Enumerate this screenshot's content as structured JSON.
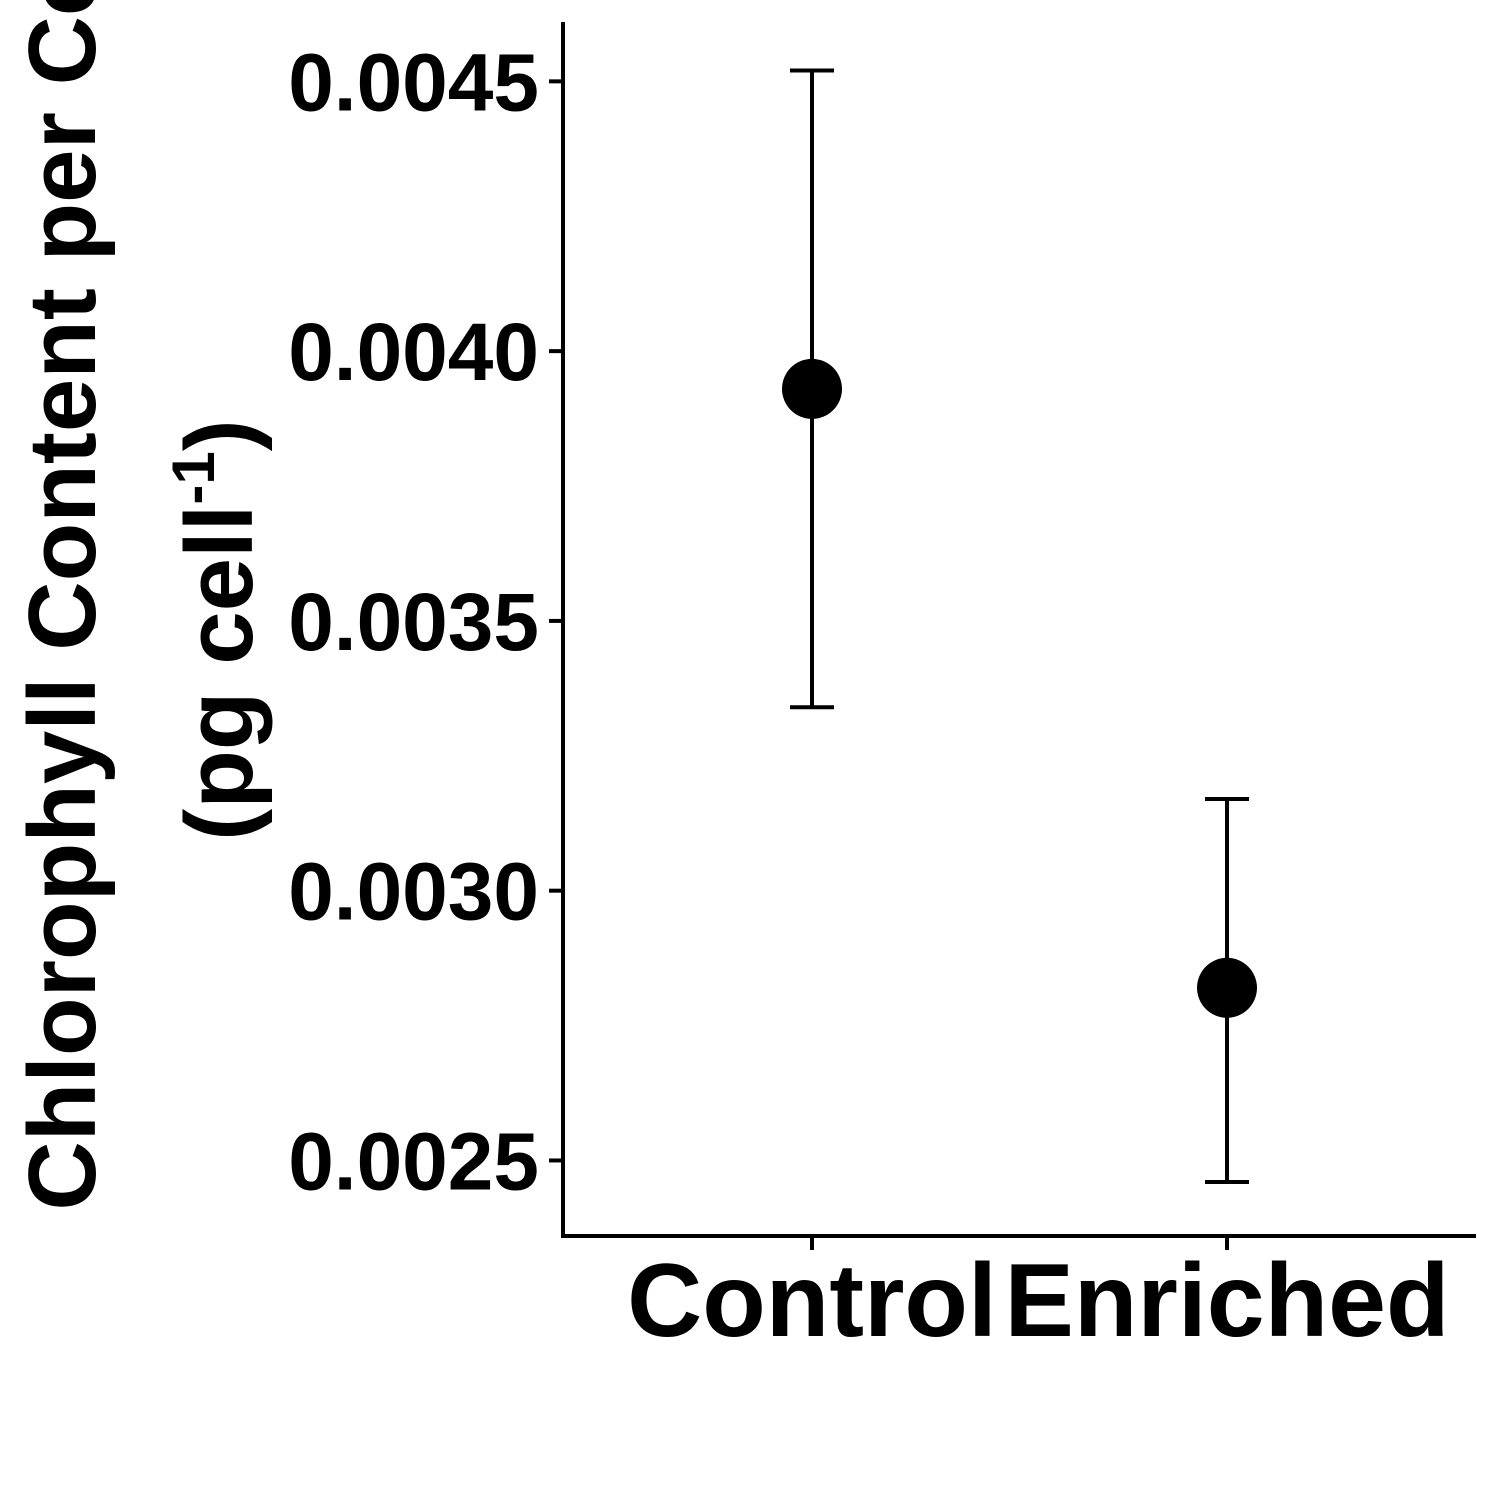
{
  "chart_data": {
    "type": "scatter",
    "title": "",
    "xlabel": "",
    "ylabel_line1": "Chlorophyll Content per Cell",
    "ylabel_line2_prefix": "(pg cell",
    "ylabel_line2_sup": "-1",
    "ylabel_line2_suffix": ")",
    "categories": [
      "Control",
      "Enriched"
    ],
    "series": [
      {
        "values": [
          0.00393,
          0.00282
        ],
        "error_low": [
          0.00334,
          0.00246
        ],
        "error_high": [
          0.00452,
          0.00317
        ]
      }
    ],
    "ylim": [
      0.00236,
      0.00461
    ],
    "yticks": [
      0.0025,
      0.003,
      0.0035,
      0.004,
      0.0045
    ],
    "ytick_labels": [
      "0.0025",
      "0.0030",
      "0.0035",
      "0.0040",
      "0.0045"
    ],
    "grid": false,
    "legend": "none",
    "color": "#000000"
  }
}
